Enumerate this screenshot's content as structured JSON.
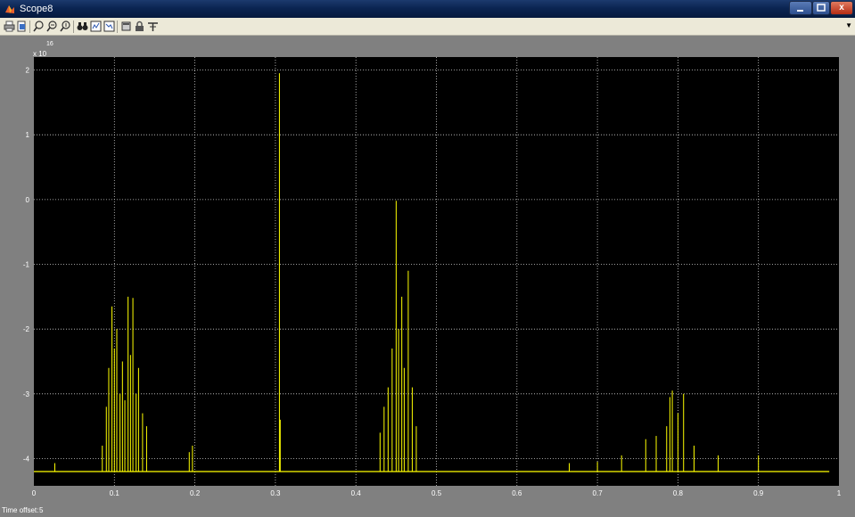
{
  "window": {
    "title": "Scope8",
    "icon": "matlab-scope-icon",
    "minimize_icon": "minimize-icon",
    "maximize_icon": "maximize-icon",
    "close_label": "x"
  },
  "toolbar": {
    "tools": [
      "print-icon",
      "print-preview-icon",
      "zoom-in-icon",
      "zoom-x-icon",
      "zoom-y-icon",
      "autoscale-icon",
      "save-axes-settings-icon",
      "restore-axes-settings-icon",
      "floating-scope-icon",
      "lock-axes-icon",
      "signal-selector-icon"
    ],
    "overflow_icon": "toolbar-overflow-arrow"
  },
  "status": {
    "time_offset_label": "Time offset:",
    "time_offset_value": "5"
  },
  "colors": {
    "plot_background": "#000000",
    "trace": "#ffff00",
    "axis_text": "#ffffff",
    "frame": "#808080"
  },
  "chart_data": {
    "type": "line",
    "title": "",
    "xlabel": "",
    "ylabel": "",
    "exponent_label": "x 10",
    "exponent_power": "16",
    "xlim": [
      0,
      1
    ],
    "ylim": [
      -4.42,
      2.2
    ],
    "x_ticks": [
      "0",
      "0.1",
      "0.2",
      "0.3",
      "0.4",
      "0.5",
      "0.6",
      "0.7",
      "0.8",
      "0.9",
      "1"
    ],
    "y_ticks": [
      "2",
      "1",
      "0",
      "-1",
      "-2",
      "-3",
      "-4"
    ],
    "grid": true,
    "baseline": -4.2,
    "series": [
      {
        "points": [
          [
            0.026,
            -4.07
          ],
          [
            0.085,
            -3.8
          ],
          [
            0.09,
            -3.2
          ],
          [
            0.093,
            -2.6
          ],
          [
            0.097,
            -1.65
          ],
          [
            0.1,
            -2.3
          ],
          [
            0.103,
            -2.0
          ],
          [
            0.107,
            -3.0
          ],
          [
            0.11,
            -2.5
          ],
          [
            0.113,
            -3.1
          ],
          [
            0.117,
            -1.5
          ],
          [
            0.12,
            -2.4
          ],
          [
            0.123,
            -1.52
          ],
          [
            0.127,
            -3.0
          ],
          [
            0.13,
            -2.6
          ],
          [
            0.135,
            -3.3
          ],
          [
            0.14,
            -3.5
          ],
          [
            0.193,
            -3.9
          ],
          [
            0.197,
            -3.8
          ],
          [
            0.305,
            1.95
          ],
          [
            0.306,
            -3.4
          ],
          [
            0.43,
            -3.6
          ],
          [
            0.435,
            -3.2
          ],
          [
            0.44,
            -2.9
          ],
          [
            0.445,
            -2.3
          ],
          [
            0.45,
            -0.02
          ],
          [
            0.453,
            -2.0
          ],
          [
            0.457,
            -1.5
          ],
          [
            0.46,
            -2.6
          ],
          [
            0.465,
            -1.1
          ],
          [
            0.47,
            -2.9
          ],
          [
            0.475,
            -3.5
          ],
          [
            0.665,
            -4.07
          ],
          [
            0.7,
            -4.05
          ],
          [
            0.73,
            -3.95
          ],
          [
            0.76,
            -3.7
          ],
          [
            0.773,
            -3.65
          ],
          [
            0.786,
            -3.5
          ],
          [
            0.79,
            -3.05
          ],
          [
            0.793,
            -2.95
          ],
          [
            0.8,
            -3.3
          ],
          [
            0.807,
            -3.0
          ],
          [
            0.82,
            -3.8
          ],
          [
            0.85,
            -3.95
          ],
          [
            0.9,
            -3.95
          ]
        ]
      }
    ]
  }
}
